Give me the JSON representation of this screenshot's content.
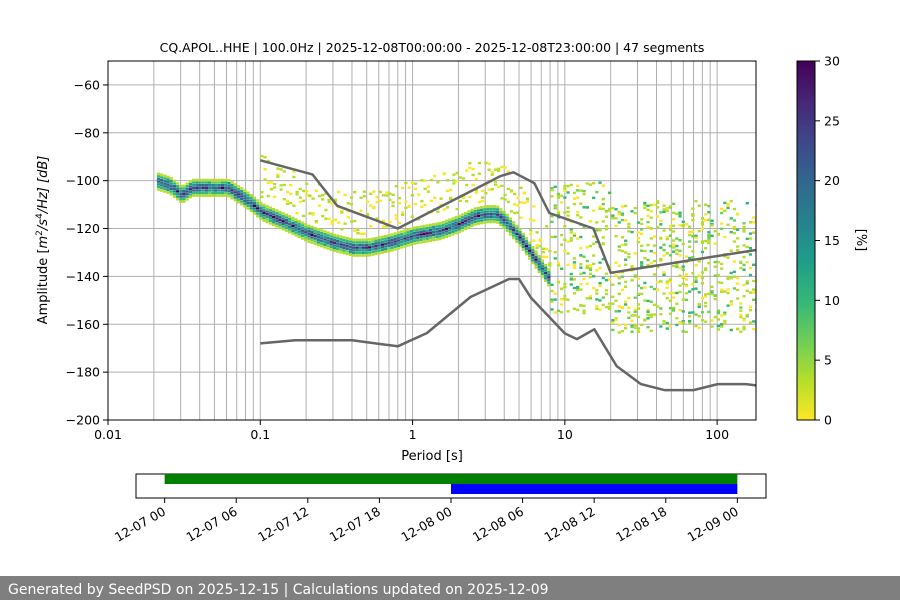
{
  "footer_text": "Generated by SeedPSD on 2025-12-15 | Calculations updated on 2025-12-09",
  "colors": {
    "model_curve": "#666666",
    "grid": "#b0b0b0",
    "availability_all": "#008000",
    "availability_selected": "#0000ff",
    "footer_bg": "#7f7f7f",
    "colormap": [
      "#fde725",
      "#b5de2b",
      "#6ece58",
      "#35b779",
      "#1f9e89",
      "#26828e",
      "#31688e",
      "#3e4989",
      "#482878",
      "#440154"
    ]
  },
  "chart_data": [
    {
      "type": "heatmap",
      "title": "CQ.APOL..HHE | 100.0Hz | 2025-12-08T00:00:00 - 2025-12-08T23:00:00 | 47 segments",
      "xlabel": "Period [s]",
      "ylabel_parts": {
        "main": "Amplitude [",
        "m": "m",
        "sup1": "2",
        "mid": "/s",
        "sup2": "4",
        "tail": "/Hz] [dB]"
      },
      "xscale": "log",
      "xlim": [
        0.01,
        180
      ],
      "ylim": [
        -200,
        -50
      ],
      "xticks": [
        {
          "value": 0.01,
          "label": "0.01"
        },
        {
          "value": 0.1,
          "label": "0.1"
        },
        {
          "value": 1,
          "label": "1"
        },
        {
          "value": 10,
          "label": "10"
        },
        {
          "value": 100,
          "label": "100"
        }
      ],
      "yticks": [
        {
          "value": -60,
          "label": "−60"
        },
        {
          "value": -80,
          "label": "−80"
        },
        {
          "value": -100,
          "label": "−100"
        },
        {
          "value": -120,
          "label": "−120"
        },
        {
          "value": -140,
          "label": "−140"
        },
        {
          "value": -160,
          "label": "−160"
        },
        {
          "value": -180,
          "label": "−180"
        },
        {
          "value": -200,
          "label": "−200"
        }
      ],
      "grid_periods": [
        0.02,
        0.03,
        0.04,
        0.05,
        0.06,
        0.07,
        0.08,
        0.09,
        0.1,
        0.2,
        0.3,
        0.4,
        0.5,
        0.6,
        0.7,
        0.8,
        0.9,
        1,
        2,
        3,
        4,
        5,
        6,
        7,
        8,
        9,
        10,
        20,
        30,
        40,
        50,
        60,
        70,
        80,
        90,
        100
      ],
      "high_noise_model": [
        {
          "x": 0.1,
          "y": -91.5
        },
        {
          "x": 0.22,
          "y": -97.4
        },
        {
          "x": 0.32,
          "y": -110.5
        },
        {
          "x": 0.8,
          "y": -120
        },
        {
          "x": 3.8,
          "y": -98
        },
        {
          "x": 4.6,
          "y": -96.5
        },
        {
          "x": 6.3,
          "y": -101
        },
        {
          "x": 7.9,
          "y": -113.5
        },
        {
          "x": 15.4,
          "y": -120
        },
        {
          "x": 20,
          "y": -138.5
        },
        {
          "x": 354.8,
          "y": -126
        }
      ],
      "low_noise_model": [
        {
          "x": 0.1,
          "y": -168
        },
        {
          "x": 0.17,
          "y": -166.7
        },
        {
          "x": 0.4,
          "y": -166.7
        },
        {
          "x": 0.8,
          "y": -169.2
        },
        {
          "x": 1.24,
          "y": -163.7
        },
        {
          "x": 2.4,
          "y": -148.6
        },
        {
          "x": 4.3,
          "y": -141.1
        },
        {
          "x": 5,
          "y": -141.1
        },
        {
          "x": 6,
          "y": -149
        },
        {
          "x": 10,
          "y": -163.8
        },
        {
          "x": 12,
          "y": -166.2
        },
        {
          "x": 15.6,
          "y": -162.1
        },
        {
          "x": 21.9,
          "y": -177.5
        },
        {
          "x": 31.6,
          "y": -185
        },
        {
          "x": 45,
          "y": -187.5
        },
        {
          "x": 70,
          "y": -187.5
        },
        {
          "x": 101,
          "y": -185
        },
        {
          "x": 154,
          "y": -185
        },
        {
          "x": 328,
          "y": -187.5
        }
      ],
      "main_band": [
        {
          "x": 0.02,
          "y": -100
        },
        {
          "x": 0.025,
          "y": -102
        },
        {
          "x": 0.03,
          "y": -106
        },
        {
          "x": 0.035,
          "y": -103
        },
        {
          "x": 0.045,
          "y": -103
        },
        {
          "x": 0.06,
          "y": -103
        },
        {
          "x": 0.08,
          "y": -108
        },
        {
          "x": 0.1,
          "y": -113
        },
        {
          "x": 0.15,
          "y": -118
        },
        {
          "x": 0.2,
          "y": -122
        },
        {
          "x": 0.3,
          "y": -126
        },
        {
          "x": 0.4,
          "y": -128
        },
        {
          "x": 0.5,
          "y": -128
        },
        {
          "x": 0.7,
          "y": -126
        },
        {
          "x": 1,
          "y": -123
        },
        {
          "x": 1.5,
          "y": -121
        },
        {
          "x": 2,
          "y": -118
        },
        {
          "x": 2.5,
          "y": -115
        },
        {
          "x": 3,
          "y": -114
        },
        {
          "x": 3.5,
          "y": -114
        },
        {
          "x": 4,
          "y": -117
        },
        {
          "x": 5,
          "y": -124
        },
        {
          "x": 6,
          "y": -131
        },
        {
          "x": 7,
          "y": -137
        },
        {
          "x": 8,
          "y": -142
        }
      ],
      "colorbar": {
        "label": "[%]",
        "range": [
          0,
          30
        ],
        "ticks": [
          {
            "value": 0,
            "label": "0"
          },
          {
            "value": 5,
            "label": "5"
          },
          {
            "value": 10,
            "label": "10"
          },
          {
            "value": 15,
            "label": "15"
          },
          {
            "value": 20,
            "label": "20"
          },
          {
            "value": 25,
            "label": "25"
          },
          {
            "value": 30,
            "label": "30"
          }
        ]
      }
    },
    {
      "type": "timeline",
      "xlim": [
        "2025-12-06T21:36",
        "2025-12-09T02:24"
      ],
      "ticks": [
        {
          "value": "2025-12-07T00:00",
          "label": "12-07 00"
        },
        {
          "value": "2025-12-07T06:00",
          "label": "12-07 06"
        },
        {
          "value": "2025-12-07T12:00",
          "label": "12-07 12"
        },
        {
          "value": "2025-12-07T18:00",
          "label": "12-07 18"
        },
        {
          "value": "2025-12-08T00:00",
          "label": "12-08 00"
        },
        {
          "value": "2025-12-08T06:00",
          "label": "12-08 06"
        },
        {
          "value": "2025-12-08T12:00",
          "label": "12-08 12"
        },
        {
          "value": "2025-12-08T18:00",
          "label": "12-08 18"
        },
        {
          "value": "2025-12-09T00:00",
          "label": "12-09 00"
        }
      ],
      "bars": [
        {
          "name": "available",
          "start": "2025-12-07T00:00",
          "end": "2025-12-09T00:00",
          "row": "upper"
        },
        {
          "name": "selected",
          "start": "2025-12-08T00:00",
          "end": "2025-12-09T00:00",
          "row": "lower"
        }
      ]
    }
  ]
}
